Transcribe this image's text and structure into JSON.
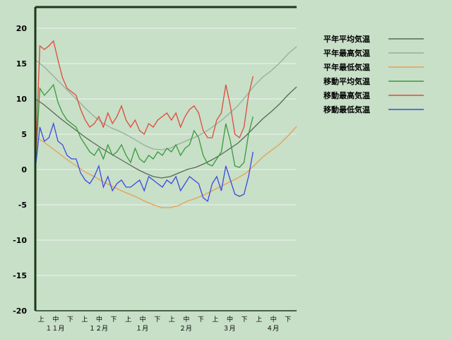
{
  "chart_data": {
    "type": "line",
    "title": "",
    "xlabel": "",
    "ylabel": "",
    "ylim": [
      -20,
      23
    ],
    "y_ticks": [
      20,
      15,
      10,
      5,
      0,
      -5,
      -10,
      -15,
      -20
    ],
    "grid": "horizontal",
    "legend_position": "right",
    "x_range": [
      "11-01",
      "04-30"
    ],
    "x_period_labels": [
      "上",
      "中",
      "下",
      "上",
      "中",
      "下",
      "上",
      "中",
      "下",
      "上",
      "中",
      "下",
      "上",
      "中",
      "下",
      "上",
      "中",
      "下"
    ],
    "x_month_labels": [
      "１１月",
      "１２月",
      "１月",
      "２月",
      "３月",
      "４月"
    ],
    "x_points_per_period": 10,
    "series": [
      {
        "name": "平年平均気温",
        "color": "#556b55",
        "y": [
          10,
          9.2,
          8.2,
          7.2,
          6.3,
          5.4,
          4.5,
          3.7,
          2.9,
          2.2,
          1.5,
          0.8,
          0.1,
          -0.5,
          -1.0,
          -1.2,
          -1.0,
          -0.5,
          0,
          0.3,
          0.8,
          1.4,
          2.1,
          2.9,
          3.7,
          4.8,
          6.0,
          7.2,
          8.2,
          9.3,
          10.6,
          11.7
        ]
      },
      {
        "name": "平年最高気温",
        "color": "#98ae98",
        "y": [
          15.5,
          14.6,
          13.4,
          12.2,
          11.0,
          9.8,
          8.6,
          7.5,
          6.6,
          5.9,
          5.4,
          4.8,
          4.1,
          3.4,
          2.9,
          2.8,
          3.0,
          3.6,
          4.1,
          4.6,
          5.2,
          6.0,
          6.9,
          7.9,
          9.0,
          10.4,
          11.9,
          13.1,
          14.0,
          15.1,
          16.4,
          17.4
        ]
      },
      {
        "name": "平年最低気温",
        "color": "#e8a050",
        "y": [
          4.6,
          3.9,
          3.0,
          2.1,
          1.2,
          0.4,
          -0.4,
          -1.0,
          -1.7,
          -2.3,
          -2.9,
          -3.4,
          -3.9,
          -4.5,
          -5.0,
          -5.4,
          -5.4,
          -5.1,
          -4.5,
          -4.1,
          -3.6,
          -3.0,
          -2.4,
          -1.8,
          -1.2,
          -0.5,
          0.6,
          1.8,
          2.7,
          3.6,
          4.8,
          6.1
        ]
      },
      {
        "name": "移動平均気温",
        "color": "#3a9a3a",
        "y": [
          0,
          11.5,
          10.5,
          11.2,
          12.0,
          9.5,
          8.0,
          7.0,
          6.5,
          6.0,
          4.5,
          3.5,
          2.5,
          2.0,
          3.0,
          1.5,
          3.5,
          2.0,
          2.5,
          3.5,
          2.0,
          1.0,
          3.0,
          1.5,
          1.0,
          2.0,
          1.5,
          2.5,
          2.0,
          3.0,
          2.5,
          3.5,
          2.0,
          3.0,
          3.5,
          5.5,
          4.5,
          2.0,
          0.8,
          0.5,
          1.5,
          2.5,
          6.5,
          4.0,
          0.5,
          0.3,
          1.0,
          5.0,
          7.5
        ]
      },
      {
        "name": "移動最高気温",
        "color": "#e04a3a",
        "y": [
          0,
          17.5,
          17.0,
          17.5,
          18.2,
          15.5,
          13.0,
          11.5,
          11.0,
          10.5,
          8.5,
          7.0,
          6.0,
          6.5,
          7.5,
          6.0,
          8.0,
          6.5,
          7.5,
          9.0,
          7.0,
          6.0,
          7.0,
          5.5,
          5.0,
          6.5,
          6.0,
          7.0,
          7.5,
          8.0,
          7.0,
          8.0,
          6.0,
          7.5,
          8.5,
          9.0,
          8.0,
          5.5,
          4.5,
          4.5,
          7.0,
          8.0,
          12.0,
          9.0,
          5.0,
          4.5,
          6.0,
          10.5,
          13.2
        ]
      },
      {
        "name": "移動最低気温",
        "color": "#3a4ae0",
        "y": [
          0,
          6.0,
          4.0,
          4.5,
          6.5,
          4.0,
          3.5,
          2.0,
          1.5,
          1.5,
          -0.5,
          -1.5,
          -2.0,
          -1.0,
          0.5,
          -2.5,
          -1.0,
          -3.0,
          -2.0,
          -1.5,
          -2.5,
          -2.5,
          -2.0,
          -1.5,
          -3.0,
          -1.0,
          -1.5,
          -2.0,
          -2.5,
          -1.5,
          -2.0,
          -1.0,
          -3.0,
          -2.0,
          -1.0,
          -1.5,
          -2.0,
          -4.0,
          -4.5,
          -2.0,
          -1.0,
          -3.0,
          0.5,
          -1.5,
          -3.5,
          -3.8,
          -3.5,
          -1.0,
          2.5
        ]
      }
    ]
  }
}
